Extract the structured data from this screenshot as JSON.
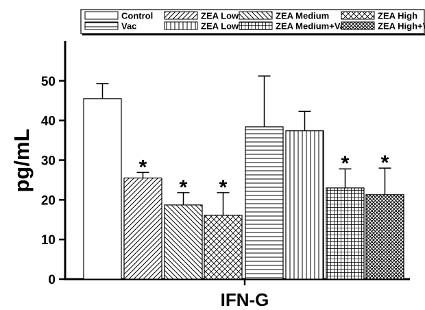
{
  "chart_data": {
    "type": "bar",
    "categories": [
      "IFN-G"
    ],
    "ylabel": "pg/mL",
    "xlabel": "",
    "ylim": [
      0,
      60
    ],
    "yticks": [
      0,
      10,
      20,
      30,
      40,
      50
    ],
    "grid": false,
    "legend_position": "top",
    "series": [
      {
        "name": "Control",
        "values": [
          45.5
        ],
        "error": [
          3.8
        ],
        "significant": false,
        "pattern": "none"
      },
      {
        "name": "ZEA Low",
        "values": [
          25.5
        ],
        "error": [
          1.4
        ],
        "significant": true,
        "pattern": "diagonal-forward"
      },
      {
        "name": "ZEA Medium",
        "values": [
          18.7
        ],
        "error": [
          3.1
        ],
        "significant": true,
        "pattern": "diagonal-backward"
      },
      {
        "name": "ZEA High",
        "values": [
          16.1
        ],
        "error": [
          5.7
        ],
        "significant": true,
        "pattern": "crosshatch-diagonal"
      },
      {
        "name": "Vac",
        "values": [
          38.4
        ],
        "error": [
          12.8
        ],
        "significant": false,
        "pattern": "horizontal-lines"
      },
      {
        "name": "ZEA Low+Vac",
        "values": [
          37.4
        ],
        "error": [
          4.9
        ],
        "significant": false,
        "pattern": "vertical-lines"
      },
      {
        "name": "ZEA Medium+Vac",
        "values": [
          23.0
        ],
        "error": [
          4.8
        ],
        "significant": true,
        "pattern": "grid-fine"
      },
      {
        "name": "ZEA High+Vac",
        "values": [
          21.3
        ],
        "error": [
          6.7
        ],
        "significant": true,
        "pattern": "crosshatch-dense"
      }
    ],
    "significance_marker": "*",
    "legend_order": [
      "Control",
      "ZEA Low",
      "ZEA Medium",
      "ZEA High",
      "Vac",
      "ZEA Low+Vac",
      "ZEA Medium+Vac",
      "ZEA High+Vac"
    ]
  }
}
